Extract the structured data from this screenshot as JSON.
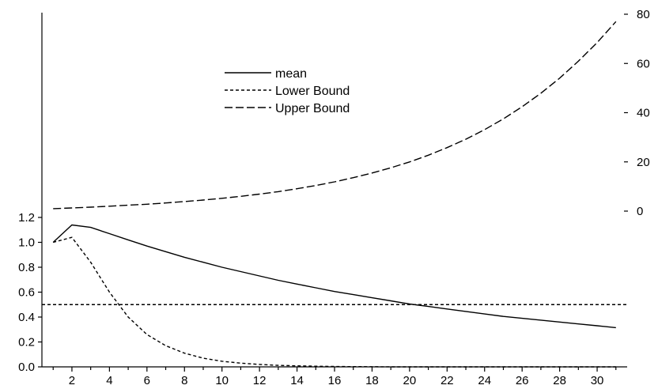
{
  "chart_data": {
    "type": "line",
    "title": "",
    "xlabel": "",
    "ylabel_left": "",
    "ylabel_right": "",
    "x": [
      1,
      2,
      3,
      4,
      5,
      6,
      7,
      8,
      9,
      10,
      11,
      12,
      13,
      14,
      15,
      16,
      17,
      18,
      19,
      20,
      21,
      22,
      23,
      24,
      25,
      26,
      27,
      28,
      29,
      30,
      31
    ],
    "xlim": [
      0.4,
      31.6
    ],
    "x_ticks": [
      2,
      4,
      6,
      8,
      10,
      12,
      14,
      16,
      18,
      20,
      22,
      24,
      26,
      28,
      30
    ],
    "left_axis": {
      "ylim": [
        0,
        1.2
      ],
      "ticks": [
        0.0,
        0.2,
        0.4,
        0.6,
        0.8,
        1.0,
        1.2
      ],
      "tick_labels": [
        "0.0",
        "0.2",
        "0.4",
        "0.6",
        "0.8",
        "1.0",
        "1.2"
      ]
    },
    "right_axis": {
      "ylim": [
        0,
        80
      ],
      "ticks": [
        0,
        20,
        40,
        60,
        80
      ],
      "tick_labels": [
        "0",
        "20",
        "40",
        "60",
        "80"
      ]
    },
    "series": [
      {
        "name": "mean",
        "axis": "left",
        "style": "solid",
        "values": [
          1.0,
          1.14,
          1.12,
          1.07,
          1.02,
          0.97,
          0.925,
          0.88,
          0.84,
          0.8,
          0.765,
          0.73,
          0.695,
          0.665,
          0.635,
          0.605,
          0.58,
          0.555,
          0.53,
          0.505,
          0.485,
          0.465,
          0.445,
          0.425,
          0.405,
          0.39,
          0.375,
          0.36,
          0.345,
          0.33,
          0.315
        ]
      },
      {
        "name": "Lower Bound",
        "axis": "left",
        "style": "short-dash",
        "values": [
          1.0,
          1.04,
          0.84,
          0.6,
          0.4,
          0.26,
          0.17,
          0.11,
          0.07,
          0.045,
          0.03,
          0.02,
          0.012,
          0.008,
          0.005,
          0.003,
          0.002,
          0.001,
          0.0,
          0.0,
          0.0,
          0.0,
          0.0,
          0.0,
          0.0,
          0.0,
          0.0,
          0.0,
          0.0,
          0.0,
          0.0
        ]
      },
      {
        "name": "Upper Bound",
        "axis": "right",
        "style": "long-dash",
        "values": [
          1.0,
          1.3,
          1.6,
          2.0,
          2.4,
          2.8,
          3.3,
          3.9,
          4.5,
          5.2,
          6.0,
          6.9,
          7.9,
          9.1,
          10.4,
          11.9,
          13.6,
          15.5,
          17.6,
          20.0,
          22.7,
          25.8,
          29.2,
          33.1,
          37.5,
          42.4,
          47.9,
          54.0,
          60.9,
          68.5,
          77.0
        ]
      }
    ],
    "reference_lines": [
      {
        "axis": "left",
        "y": 0.5,
        "style": "short-dash"
      }
    ],
    "legend": {
      "position": "top-center",
      "entries": [
        "mean",
        "Lower Bound",
        "Upper Bound"
      ]
    }
  }
}
